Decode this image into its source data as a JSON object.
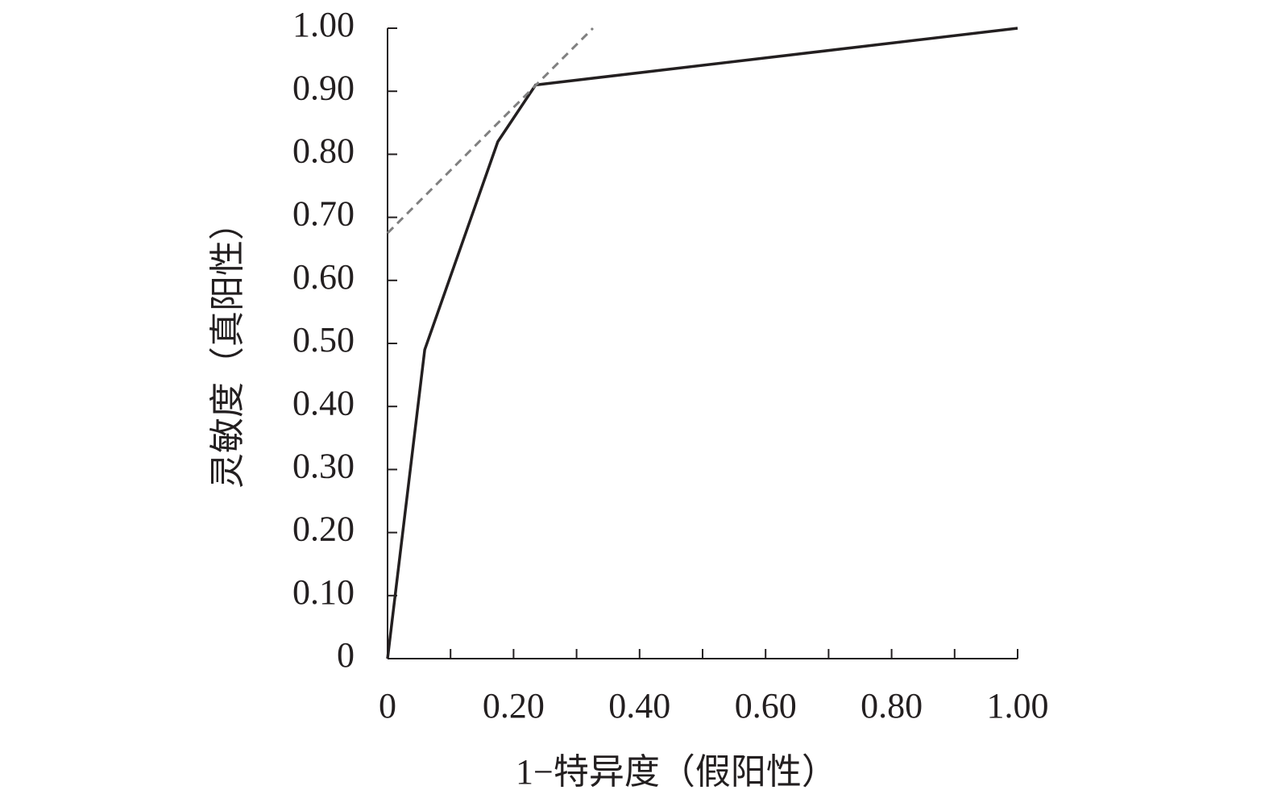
{
  "chart_data": {
    "type": "line",
    "xlabel": "1−特异度（假阳性）",
    "ylabel": "灵敏度（真阳性）",
    "series": [
      {
        "color": "#231f20",
        "dashed": false,
        "x": [
          0,
          0.059,
          0.175,
          0.235,
          1.0
        ],
        "values": [
          0,
          0.49,
          0.82,
          0.91,
          1.0
        ]
      },
      {
        "color": "#808080",
        "dashed": true,
        "x": [
          0,
          0.326
        ],
        "values": [
          0.675,
          1.0
        ]
      }
    ],
    "xlim": [
      0,
      1.0
    ],
    "ylim": [
      0,
      1.0
    ],
    "xticks": [
      0,
      {
        "value": 0.2,
        "label": "0.20"
      },
      {
        "value": 0.4,
        "label": "0.40"
      },
      {
        "value": 0.6,
        "label": "0.60"
      },
      {
        "value": 0.8,
        "label": "0.80"
      },
      {
        "value": 1.0,
        "label": "1.00"
      }
    ],
    "xminorticks": [
      0.1,
      0.3,
      0.5,
      0.7,
      0.9
    ],
    "yticks": [
      0,
      {
        "value": 0.1,
        "label": "0.10"
      },
      {
        "value": 0.2,
        "label": "0.20"
      },
      {
        "value": 0.3,
        "label": "0.30"
      },
      {
        "value": 0.4,
        "label": "0.40"
      },
      {
        "value": 0.5,
        "label": "0.50"
      },
      {
        "value": 0.6,
        "label": "0.60"
      },
      {
        "value": 0.7,
        "label": "0.70"
      },
      {
        "value": 0.8,
        "label": "0.80"
      },
      {
        "value": 0.9,
        "label": "0.90"
      },
      {
        "value": 1.0,
        "label": "1.00"
      }
    ],
    "grid": false
  }
}
